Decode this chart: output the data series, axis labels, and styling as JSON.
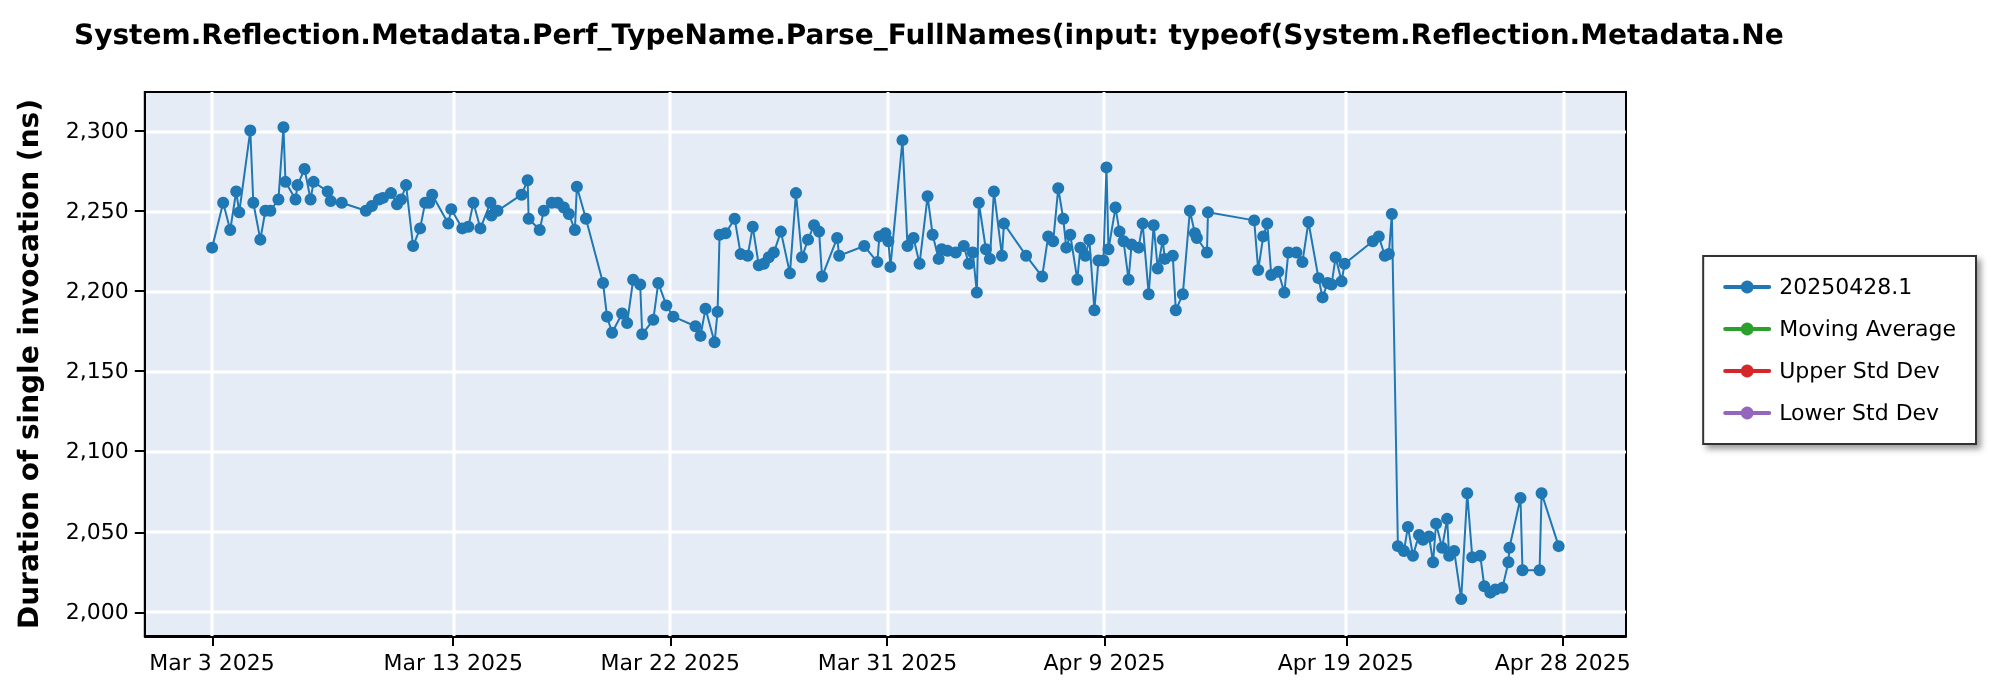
{
  "chart_data": {
    "type": "line",
    "title": "System.Reflection.Metadata.Perf_TypeName.Parse_FullNames(input: typeof(System.Reflection.Metadata.Ne",
    "ylabel": "Duration of single invocation (ns)",
    "x": [
      "2025-03-03T00:00",
      "2025-03-03T11:00",
      "2025-03-03T18:00",
      "2025-03-04T00:00",
      "2025-03-04T03:00",
      "2025-03-04T14:00",
      "2025-03-04T17:00",
      "2025-03-05T00:00",
      "2025-03-05T05:00",
      "2025-03-05T10:00",
      "2025-03-05T18:00",
      "2025-03-05T23:00",
      "2025-03-06T01:00",
      "2025-03-06T11:00",
      "2025-03-06T13:00",
      "2025-03-06T20:00",
      "2025-03-07T02:00",
      "2025-03-07T05:00",
      "2025-03-07T19:00",
      "2025-03-07T22:00",
      "2025-03-08T09:00",
      "2025-03-09T09:00",
      "2025-03-09T15:00",
      "2025-03-09T22:00",
      "2025-03-10T02:00",
      "2025-03-10T10:00",
      "2025-03-10T16:00",
      "2025-03-10T20:00",
      "2025-03-11T01:00",
      "2025-03-11T08:00",
      "2025-03-11T15:00",
      "2025-03-11T20:00",
      "2025-03-12T00:00",
      "2025-03-12T03:00",
      "2025-03-12T19:00",
      "2025-03-12T22:00",
      "2025-03-13T09:00",
      "2025-03-13T15:00",
      "2025-03-13T20:00",
      "2025-03-14T03:00",
      "2025-03-14T13:00",
      "2025-03-14T14:00",
      "2025-03-14T20:00",
      "2025-03-15T20:00",
      "2025-03-16T02:00",
      "2025-03-16T03:00",
      "2025-03-16T14:00",
      "2025-03-16T18:00",
      "2025-03-17T02:00",
      "2025-03-17T08:00",
      "2025-03-17T14:00",
      "2025-03-17T19:00",
      "2025-03-18T01:00",
      "2025-03-18T03:00",
      "2025-03-18T12:00",
      "2025-03-19T05:00",
      "2025-03-19T09:00",
      "2025-03-19T14:00",
      "2025-03-20T00:00",
      "2025-03-20T05:00",
      "2025-03-20T11:00",
      "2025-03-20T18:00",
      "2025-03-20T20:00",
      "2025-03-21T07:00",
      "2025-03-21T12:00",
      "2025-03-21T20:00",
      "2025-03-22T03:00",
      "2025-03-23T01:00",
      "2025-03-23T06:00",
      "2025-03-23T11:00",
      "2025-03-23T20:00",
      "2025-03-23T23:00",
      "2025-03-24T01:00",
      "2025-03-24T07:00",
      "2025-03-24T16:00",
      "2025-03-24T22:00",
      "2025-03-25T05:00",
      "2025-03-25T10:00",
      "2025-03-25T16:00",
      "2025-03-25T21:00",
      "2025-03-26T02:00",
      "2025-03-26T07:00",
      "2025-03-26T14:00",
      "2025-03-26T23:00",
      "2025-03-27T05:00",
      "2025-03-27T11:00",
      "2025-03-27T17:00",
      "2025-03-27T23:00",
      "2025-03-28T04:00",
      "2025-03-28T07:00",
      "2025-03-28T22:00",
      "2025-03-29T00:00",
      "2025-03-30T01:00",
      "2025-03-30T14:00",
      "2025-03-30T16:00",
      "2025-03-30T22:00",
      "2025-03-31T01:00",
      "2025-03-31T03:00",
      "2025-03-31T15:00",
      "2025-03-31T20:00",
      "2025-04-01T02:00",
      "2025-04-01T08:00",
      "2025-04-01T16:00",
      "2025-04-01T21:00",
      "2025-04-02T03:00",
      "2025-04-02T06:00",
      "2025-04-02T12:00",
      "2025-04-02T20:00",
      "2025-04-03T04:00",
      "2025-04-03T09:00",
      "2025-04-03T13:00",
      "2025-04-03T17:00",
      "2025-04-03T19:00",
      "2025-04-04T02:00",
      "2025-04-04T06:00",
      "2025-04-04T10:00",
      "2025-04-04T18:00",
      "2025-04-04T20:00",
      "2025-04-05T18:00",
      "2025-04-06T10:00",
      "2025-04-06T16:00",
      "2025-04-06T21:00",
      "2025-04-07T02:00",
      "2025-04-07T07:00",
      "2025-04-07T10:00",
      "2025-04-07T14:00",
      "2025-04-07T21:00",
      "2025-04-08T00:00",
      "2025-04-08T05:00",
      "2025-04-08T09:00",
      "2025-04-08T14:00",
      "2025-04-08T18:00",
      "2025-04-08T23:00",
      "2025-04-09T02:00",
      "2025-04-09T04:00",
      "2025-04-09T11:00",
      "2025-04-09T15:00",
      "2025-04-09T19:00",
      "2025-04-10T00:00",
      "2025-04-10T03:00",
      "2025-04-10T10:00",
      "2025-04-10T14:00",
      "2025-04-10T20:00",
      "2025-04-11T01:00",
      "2025-04-11T05:00",
      "2025-04-11T10:00",
      "2025-04-11T12:00",
      "2025-04-11T20:00",
      "2025-04-11T23:00",
      "2025-04-12T06:00",
      "2025-04-12T13:00",
      "2025-04-12T18:00",
      "2025-04-12T20:00",
      "2025-04-13T06:00",
      "2025-04-13T07:00",
      "2025-04-15T05:00",
      "2025-04-15T09:00",
      "2025-04-15T14:00",
      "2025-04-15T18:00",
      "2025-04-15T22:00",
      "2025-04-16T05:00",
      "2025-04-16T11:00",
      "2025-04-16T15:00",
      "2025-04-16T23:00",
      "2025-04-17T05:00",
      "2025-04-17T11:00",
      "2025-04-17T21:00",
      "2025-04-18T01:00",
      "2025-04-18T06:00",
      "2025-04-18T10:00",
      "2025-04-18T14:00",
      "2025-04-18T20:00",
      "2025-04-18T23:00",
      "2025-04-20T03:00",
      "2025-04-20T09:00",
      "2025-04-20T15:00",
      "2025-04-20T19:00",
      "2025-04-20T22:00",
      "2025-04-21T04:00",
      "2025-04-21T10:00",
      "2025-04-21T14:00",
      "2025-04-21T19:00",
      "2025-04-22T01:00",
      "2025-04-22T05:00",
      "2025-04-22T11:00",
      "2025-04-22T15:00",
      "2025-04-22T18:00",
      "2025-04-23T00:00",
      "2025-04-23T05:00",
      "2025-04-23T07:00",
      "2025-04-23T12:00",
      "2025-04-23T19:00",
      "2025-04-24T01:00",
      "2025-04-24T06:00",
      "2025-04-24T14:00",
      "2025-04-24T18:00",
      "2025-04-25T00:00",
      "2025-04-25T05:00",
      "2025-04-25T12:00",
      "2025-04-25T18:00",
      "2025-04-25T19:00",
      "2025-04-26T06:00",
      "2025-04-26T08:00",
      "2025-04-27T01:00",
      "2025-04-27T03:00",
      "2025-04-27T20:00"
    ],
    "series": [
      {
        "name": "20250428.1",
        "color": "#1f77b4",
        "values": [
          2227,
          2255,
          2238,
          2262,
          2249,
          2300,
          2255,
          2232,
          2250,
          2250,
          2257,
          2302,
          2268,
          2257,
          2266,
          2276,
          2257,
          2268,
          2262,
          2256,
          2255,
          2250,
          2253,
          2257,
          2258,
          2261,
          2254,
          2257,
          2266,
          2228,
          2239,
          2255,
          2255,
          2260,
          2242,
          2251,
          2239,
          2240,
          2255,
          2239,
          2255,
          2247,
          2250,
          2260,
          2269,
          2245,
          2238,
          2250,
          2255,
          2255,
          2252,
          2248,
          2238,
          2265,
          2245,
          2205,
          2184,
          2174,
          2186,
          2180,
          2207,
          2204,
          2173,
          2182,
          2205,
          2191,
          2184,
          2178,
          2172,
          2189,
          2168,
          2187,
          2235,
          2236,
          2245,
          2223,
          2222,
          2240,
          2216,
          2217,
          2221,
          2224,
          2237,
          2211,
          2261,
          2221,
          2232,
          2241,
          2237,
          2209,
          2233,
          2222,
          2228,
          2218,
          2234,
          2236,
          2231,
          2215,
          2294,
          2228,
          2233,
          2217,
          2259,
          2235,
          2220,
          2226,
          2225,
          2224,
          2228,
          2217,
          2224,
          2199,
          2255,
          2226,
          2220,
          2262,
          2222,
          2242,
          2222,
          2209,
          2234,
          2231,
          2264,
          2245,
          2227,
          2235,
          2207,
          2227,
          2222,
          2232,
          2188,
          2219,
          2219,
          2277,
          2226,
          2252,
          2237,
          2231,
          2207,
          2229,
          2227,
          2242,
          2198,
          2241,
          2214,
          2232,
          2220,
          2222,
          2188,
          2198,
          2250,
          2236,
          2233,
          2224,
          2249,
          2244,
          2213,
          2234,
          2242,
          2210,
          2212,
          2199,
          2224,
          2224,
          2218,
          2243,
          2208,
          2196,
          2205,
          2204,
          2221,
          2206,
          2217,
          2231,
          2234,
          2222,
          2223,
          2248,
          2041,
          2038,
          2053,
          2035,
          2048,
          2045,
          2047,
          2031,
          2055,
          2040,
          2058,
          2035,
          2038,
          2008,
          2074,
          2034,
          2035,
          2016,
          2012,
          2014,
          2015,
          2031,
          2040,
          2071,
          2026,
          2026,
          2074,
          2041
        ]
      },
      {
        "name": "Moving Average",
        "color": "#2ca02c",
        "values": [
          null,
          null,
          null,
          null,
          null,
          null,
          null,
          null,
          null,
          null,
          null,
          null,
          null,
          null,
          null,
          null,
          null,
          null,
          null,
          null,
          null,
          null,
          null,
          null,
          null,
          null,
          null,
          null,
          null,
          null,
          null,
          null,
          null,
          null,
          null,
          null,
          null,
          null,
          null,
          null,
          null,
          null,
          null,
          null,
          null,
          null,
          null,
          null,
          null,
          null,
          null,
          null,
          null,
          null,
          null,
          null,
          null,
          null,
          null,
          null,
          null,
          null,
          null,
          null,
          null,
          null,
          null,
          null,
          null,
          null,
          null,
          null,
          null,
          null,
          null,
          null,
          null,
          null,
          null,
          null,
          null,
          null,
          null,
          null,
          null,
          null,
          null,
          null,
          null,
          null,
          null,
          null,
          null,
          null,
          null,
          null,
          null,
          null,
          null,
          null,
          null,
          null,
          null,
          null,
          null,
          null,
          null,
          null,
          null,
          null,
          null,
          null,
          null,
          null,
          null,
          null,
          null,
          null,
          null,
          null,
          null,
          null,
          null,
          null,
          null,
          null,
          null,
          null,
          null,
          null,
          null,
          null,
          null,
          null,
          null,
          null,
          null,
          null,
          null,
          null,
          null,
          null,
          null,
          null,
          null,
          null,
          null,
          null,
          null,
          null,
          null,
          null,
          null,
          null,
          null,
          null,
          null,
          null,
          null,
          null,
          null,
          null,
          null,
          null,
          null,
          null,
          null,
          null,
          null,
          null,
          null,
          null,
          null,
          null,
          null,
          null,
          null,
          null,
          null,
          null,
          null,
          null,
          null,
          null,
          null,
          null,
          null,
          null,
          null,
          null,
          null,
          null,
          null,
          null,
          null,
          null,
          null,
          null,
          null,
          null,
          null,
          null,
          null,
          null,
          null,
          null
        ]
      },
      {
        "name": "Upper Std Dev",
        "color": "#d62728",
        "values": [
          null,
          null,
          null,
          null,
          null,
          null,
          null,
          null,
          null,
          null,
          null,
          null,
          null,
          null,
          null,
          null,
          null,
          null,
          null,
          null,
          null,
          null,
          null,
          null,
          null,
          null,
          null,
          null,
          null,
          null,
          null,
          null,
          null,
          null,
          null,
          null,
          null,
          null,
          null,
          null,
          null,
          null,
          null,
          null,
          null,
          null,
          null,
          null,
          null,
          null,
          null,
          null,
          null,
          null,
          null,
          null,
          null,
          null,
          null,
          null,
          null,
          null,
          null,
          null,
          null,
          null,
          null,
          null,
          null,
          null,
          null,
          null,
          null,
          null,
          null,
          null,
          null,
          null,
          null,
          null,
          null,
          null,
          null,
          null,
          null,
          null,
          null,
          null,
          null,
          null,
          null,
          null,
          null,
          null,
          null,
          null,
          null,
          null,
          null,
          null,
          null,
          null,
          null,
          null,
          null,
          null,
          null,
          null,
          null,
          null,
          null,
          null,
          null,
          null,
          null,
          null,
          null,
          null,
          null,
          null,
          null,
          null,
          null,
          null,
          null,
          null,
          null,
          null,
          null,
          null,
          null,
          null,
          null,
          null,
          null,
          null,
          null,
          null,
          null,
          null,
          null,
          null,
          null,
          null,
          null,
          null,
          null,
          null,
          null,
          null,
          null,
          null,
          null,
          null,
          null,
          null,
          null,
          null,
          null,
          null,
          null,
          null,
          null,
          null,
          null,
          null,
          null,
          null,
          null,
          null,
          null,
          null,
          null,
          null,
          null,
          null,
          null,
          null,
          null,
          null,
          null,
          null,
          null,
          null,
          null,
          null,
          null,
          null,
          null,
          null,
          null,
          null,
          null,
          null,
          null,
          null,
          null,
          null,
          null,
          null,
          null,
          null,
          null,
          null,
          null,
          null
        ]
      },
      {
        "name": "Lower Std Dev",
        "color": "#9467bd",
        "values": [
          null,
          null,
          null,
          null,
          null,
          null,
          null,
          null,
          null,
          null,
          null,
          null,
          null,
          null,
          null,
          null,
          null,
          null,
          null,
          null,
          null,
          null,
          null,
          null,
          null,
          null,
          null,
          null,
          null,
          null,
          null,
          null,
          null,
          null,
          null,
          null,
          null,
          null,
          null,
          null,
          null,
          null,
          null,
          null,
          null,
          null,
          null,
          null,
          null,
          null,
          null,
          null,
          null,
          null,
          null,
          null,
          null,
          null,
          null,
          null,
          null,
          null,
          null,
          null,
          null,
          null,
          null,
          null,
          null,
          null,
          null,
          null,
          null,
          null,
          null,
          null,
          null,
          null,
          null,
          null,
          null,
          null,
          null,
          null,
          null,
          null,
          null,
          null,
          null,
          null,
          null,
          null,
          null,
          null,
          null,
          null,
          null,
          null,
          null,
          null,
          null,
          null,
          null,
          null,
          null,
          null,
          null,
          null,
          null,
          null,
          null,
          null,
          null,
          null,
          null,
          null,
          null,
          null,
          null,
          null,
          null,
          null,
          null,
          null,
          null,
          null,
          null,
          null,
          null,
          null,
          null,
          null,
          null,
          null,
          null,
          null,
          null,
          null,
          null,
          null,
          null,
          null,
          null,
          null,
          null,
          null,
          null,
          null,
          null,
          null,
          null,
          null,
          null,
          null,
          null,
          null,
          null,
          null,
          null,
          null,
          null,
          null,
          null,
          null,
          null,
          null,
          null,
          null,
          null,
          null,
          null,
          null,
          null,
          null,
          null,
          null,
          null,
          null,
          null,
          null,
          null,
          null,
          null,
          null,
          null,
          null,
          null,
          null,
          null,
          null,
          null,
          null,
          null,
          null,
          null,
          null,
          null,
          null,
          null,
          null,
          null,
          null,
          null,
          null,
          null,
          null
        ]
      }
    ],
    "xlim": [
      "2025-02-28T05:00",
      "2025-04-30T15:00"
    ],
    "xticks": [
      {
        "value": "2025-03-03",
        "label": "Mar 3 2025"
      },
      {
        "value": "2025-03-13",
        "label": "Mar 13 2025"
      },
      {
        "value": "2025-03-22",
        "label": "Mar 22 2025"
      },
      {
        "value": "2025-03-31",
        "label": "Mar 31 2025"
      },
      {
        "value": "2025-04-09",
        "label": "Apr 9 2025"
      },
      {
        "value": "2025-04-19",
        "label": "Apr 19 2025"
      },
      {
        "value": "2025-04-28",
        "label": "Apr 28 2025"
      }
    ],
    "ylim": [
      1985,
      2324
    ],
    "yticks": [
      {
        "value": 2000,
        "label": "2,000"
      },
      {
        "value": 2050,
        "label": "2,050"
      },
      {
        "value": 2100,
        "label": "2,100"
      },
      {
        "value": 2150,
        "label": "2,150"
      },
      {
        "value": 2200,
        "label": "2,200"
      },
      {
        "value": 2250,
        "label": "2,250"
      },
      {
        "value": 2300,
        "label": "2,300"
      }
    ],
    "grid": true,
    "legend": "right",
    "marker": "circle",
    "line_style": "solid"
  }
}
